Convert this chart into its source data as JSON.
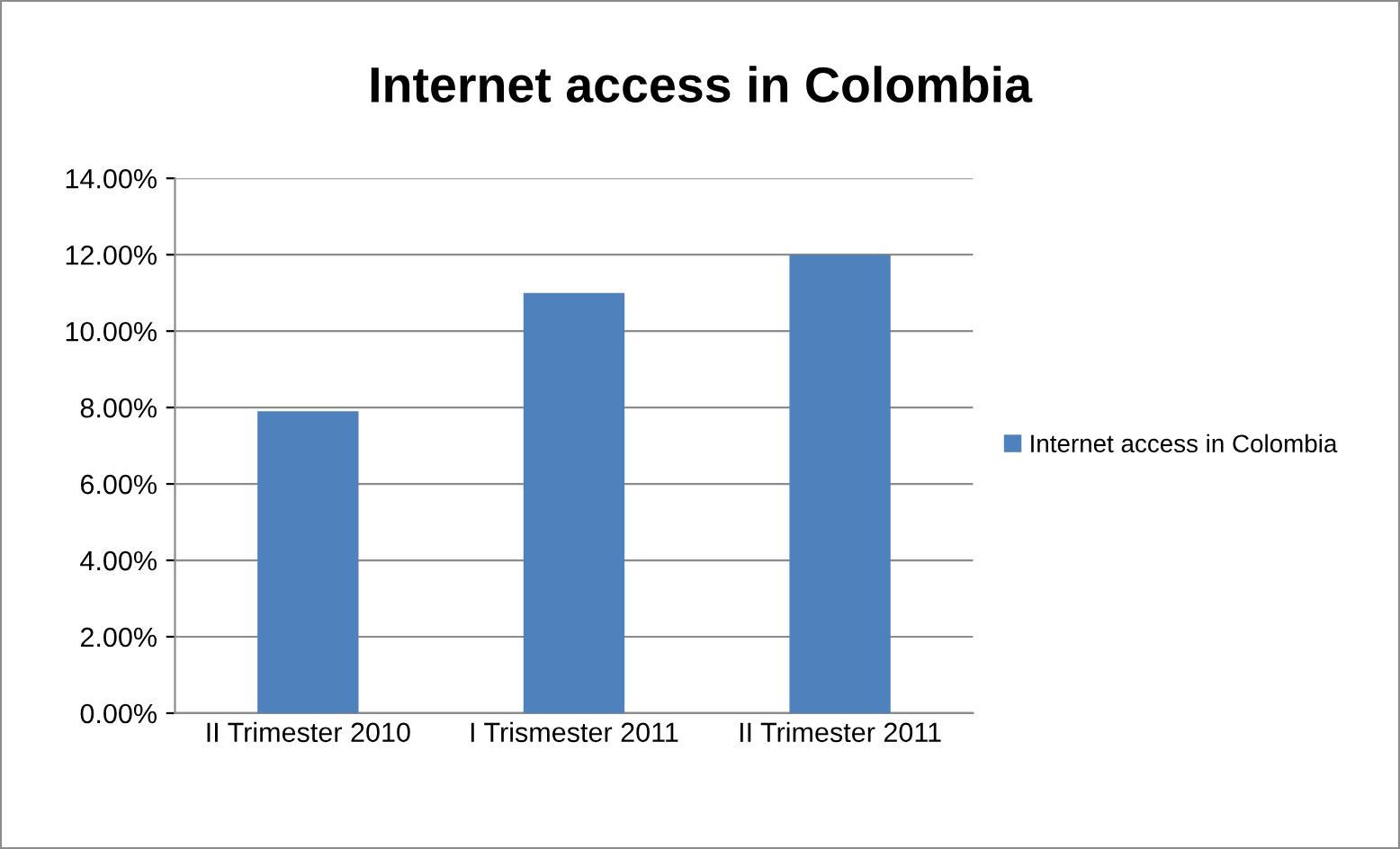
{
  "chart_data": {
    "type": "bar",
    "title": "Internet access in Colombia",
    "categories": [
      "II Trimester 2010",
      "I Trismester 2011",
      "II Trimester 2011"
    ],
    "series": [
      {
        "name": "Internet access in Colombia",
        "color": "#4f81bd",
        "values": [
          7.9,
          11.0,
          12.0
        ]
      }
    ],
    "ylim": [
      0,
      14
    ],
    "yticks": [
      {
        "value": 0,
        "label": "0.00%"
      },
      {
        "value": 2,
        "label": "2.00%"
      },
      {
        "value": 4,
        "label": "4.00%"
      },
      {
        "value": 6,
        "label": "6.00%"
      },
      {
        "value": 8,
        "label": "8.00%"
      },
      {
        "value": 10,
        "label": "10.00%"
      },
      {
        "value": 12,
        "label": "12.00%"
      },
      {
        "value": 14,
        "label": "14.00%"
      }
    ],
    "grid": "y",
    "legend": "right"
  }
}
